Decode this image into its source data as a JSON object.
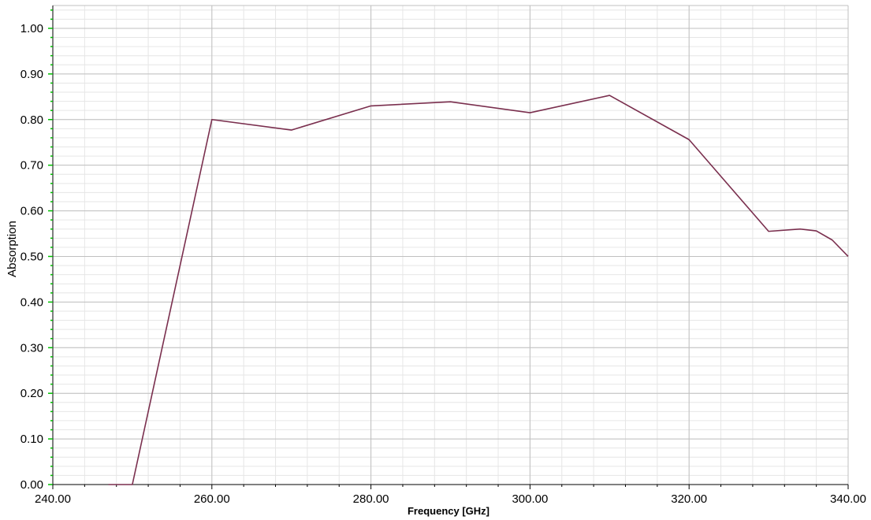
{
  "chart_data": {
    "type": "line",
    "title": "",
    "xlabel": "Frequency [GHz]",
    "ylabel": "Absorption",
    "xlim": [
      240,
      340
    ],
    "ylim": [
      0,
      1.05
    ],
    "x_ticks": [
      "240.00",
      "260.00",
      "280.00",
      "300.00",
      "320.00",
      "340.00"
    ],
    "y_ticks": [
      "0.00",
      "0.10",
      "0.20",
      "0.30",
      "0.40",
      "0.50",
      "0.60",
      "0.70",
      "0.80",
      "0.90",
      "1.00"
    ],
    "grid": true,
    "legend": "none",
    "colors": {
      "line": "#7a2f4e",
      "major_grid": "#c0c0c0",
      "minor_grid": "#e6e6e6",
      "y_axis_ticks": "#00c000",
      "x_axis_ticks": "#000000"
    },
    "series": [
      {
        "x": [
          247,
          250,
          260,
          270,
          280,
          290,
          300,
          310,
          320,
          330,
          334,
          336,
          338,
          340
        ],
        "y": [
          0.0,
          0.0,
          0.8,
          0.777,
          0.83,
          0.839,
          0.815,
          0.853,
          0.756,
          0.555,
          0.56,
          0.556,
          0.536,
          0.5
        ]
      }
    ]
  }
}
